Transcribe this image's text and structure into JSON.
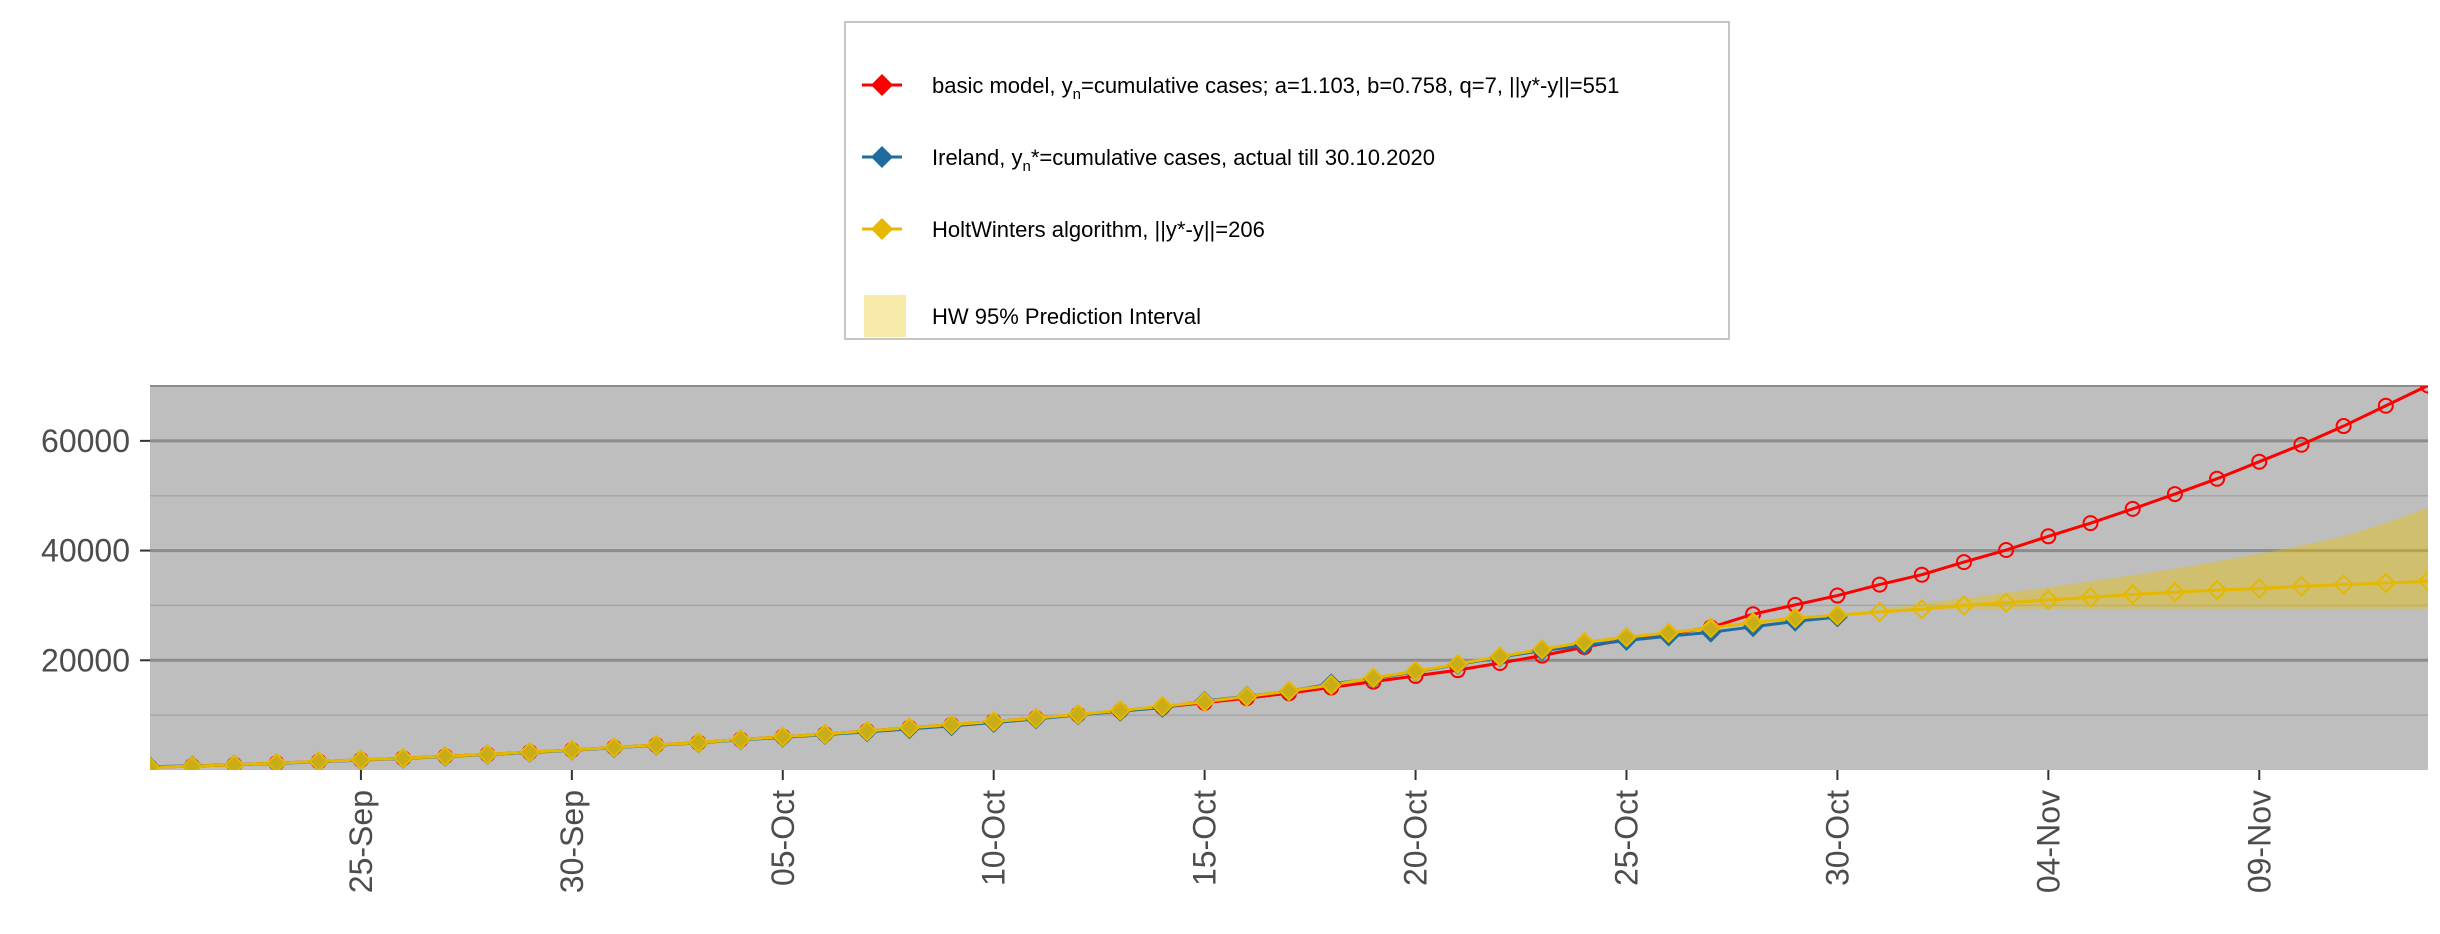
{
  "chart_data": {
    "type": "line",
    "x_type": "date",
    "xlim": [
      "2020-09-20",
      "2020-11-13"
    ],
    "ylim": [
      0,
      70000
    ],
    "y_ticks": [
      20000,
      40000,
      60000
    ],
    "y_tick_labels": [
      "20000",
      "40000",
      "60000"
    ],
    "x_ticks": [
      "2020-09-25",
      "2020-09-30",
      "2020-10-05",
      "2020-10-10",
      "2020-10-15",
      "2020-10-20",
      "2020-10-25",
      "2020-10-30",
      "2020-11-04",
      "2020-11-09"
    ],
    "x_tick_labels": [
      "25-Sep",
      "30-Sep",
      "05-Oct",
      "10-Oct",
      "15-Oct",
      "20-Oct",
      "25-Oct",
      "30-Oct",
      "04-Nov",
      "09-Nov"
    ],
    "grid": true,
    "legend_position": "top",
    "legend": {
      "model": {
        "pre": "basic model,  y",
        "sub": "n",
        "post": "=cumulative cases; a=1.103, b=0.758, q=7, ||y*-y||=551"
      },
      "ireland": {
        "pre": "Ireland, y",
        "sub": "n",
        "post": "*=cumulative cases, actual till 30.10.2020"
      },
      "hw": {
        "pre": "HoltWinters algorithm,  ||y*-y||=206",
        "sub": "",
        "post": ""
      },
      "band": {
        "pre": "HW 95% Prediction Interval",
        "sub": "",
        "post": ""
      }
    },
    "series": [
      {
        "name": "basic model,  yn=cumulative cases; a=1.103, b=0.758, q=7, ||y*-y||=551",
        "color": "#ff0000",
        "marker": "circle-open",
        "x_start": "2020-09-20",
        "values": [
          500,
          700,
          950,
          1250,
          1550,
          1850,
          2150,
          2500,
          2850,
          3250,
          3650,
          4100,
          4550,
          5000,
          5550,
          6050,
          6550,
          7100,
          7700,
          8250,
          8850,
          9450,
          10100,
          10750,
          11450,
          12250,
          13100,
          14000,
          15050,
          16100,
          17150,
          18200,
          19500,
          20850,
          22400,
          23800,
          24800,
          26000,
          28400,
          30100,
          31800,
          33800,
          35600,
          37900,
          40100,
          42600,
          45000,
          47600,
          50300,
          53100,
          56200,
          59300,
          62700,
          66400,
          70100
        ]
      },
      {
        "name": "Ireland, yn*=cumulative cases, actual till 30.10.2020",
        "color": "#1f6d9e",
        "marker": "diamond",
        "x_start": "2020-09-20",
        "values": [
          600,
          750,
          950,
          1200,
          1500,
          1800,
          2100,
          2450,
          2800,
          3200,
          3600,
          4050,
          4500,
          4950,
          5500,
          5950,
          6450,
          6950,
          7500,
          8050,
          8650,
          9300,
          10050,
          10700,
          11400,
          12550,
          13450,
          14350,
          15700,
          16650,
          17950,
          19200,
          20600,
          21750,
          22700,
          23600,
          24400,
          25100,
          26100,
          27100,
          27900
        ]
      },
      {
        "name": "HoltWinters algorithm,  ||y*-y||=206",
        "color": "#e6b800",
        "marker": "diamond",
        "x_start": "2020-09-20",
        "values": [
          500,
          700,
          950,
          1250,
          1550,
          1850,
          2150,
          2500,
          2850,
          3250,
          3650,
          4100,
          4550,
          5000,
          5550,
          6050,
          6550,
          7100,
          7700,
          8250,
          8850,
          9450,
          10150,
          10850,
          11600,
          12450,
          13400,
          14400,
          15500,
          16800,
          18000,
          19300,
          20700,
          22000,
          23300,
          24200,
          25000,
          25900,
          26900,
          27700,
          28200,
          28800,
          29300,
          30000,
          30500,
          31000,
          31500,
          32000,
          32400,
          32800,
          33100,
          33500,
          33800,
          34100,
          34400
        ]
      }
    ],
    "prediction_interval": {
      "name": "HW 95% Prediction Interval",
      "color": "#e6c200",
      "x_start": "2020-10-30",
      "lower": [
        28000,
        28700,
        29100,
        29300,
        29400,
        29400,
        29400,
        29400,
        29400,
        29400,
        29400,
        29400,
        29400,
        29400,
        29400
      ],
      "upper": [
        28400,
        29300,
        30300,
        31300,
        32300,
        33300,
        34400,
        35500,
        36700,
        38000,
        39400,
        40900,
        42600,
        45000,
        47800
      ]
    }
  }
}
